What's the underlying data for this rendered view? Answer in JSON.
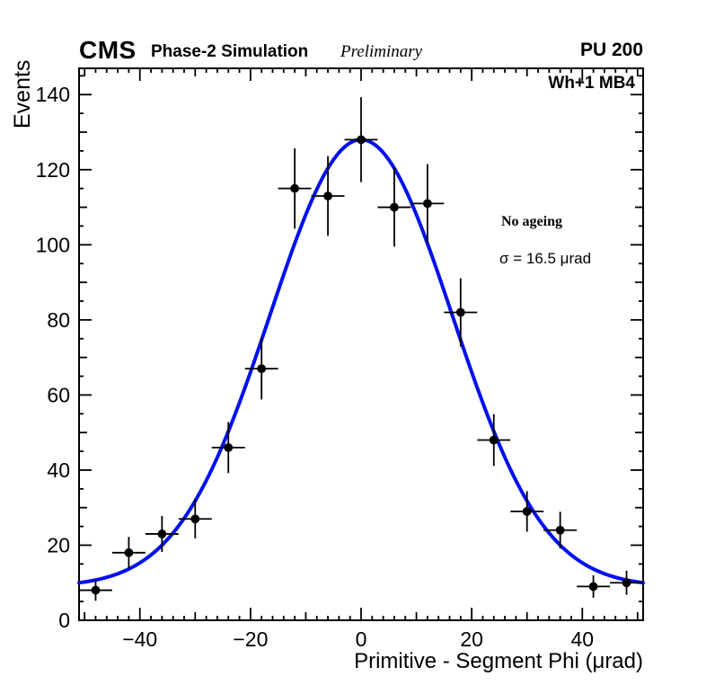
{
  "header": {
    "experiment": "CMS",
    "subtitle": "Phase-2 Simulation",
    "preliminary": "Preliminary",
    "pu": "PU 200"
  },
  "plot_labels": {
    "region": "Wh+1 MB4",
    "ageing": "No ageing",
    "sigma": "σ = 16.5 μrad"
  },
  "chart_data": {
    "type": "scatter",
    "title": "",
    "xlabel": "Primitive - Segment Phi (μrad)",
    "ylabel": "Events",
    "xlim": [
      -51,
      51
    ],
    "ylim": [
      0,
      147
    ],
    "x_ticks": [
      -40,
      -20,
      0,
      20,
      40
    ],
    "y_ticks": [
      0,
      20,
      40,
      60,
      80,
      100,
      120,
      140
    ],
    "grid": false,
    "legend_position": "none",
    "x": [
      -48,
      -42,
      -36,
      -30,
      -24,
      -18,
      -12,
      -6,
      0,
      6,
      12,
      18,
      24,
      30,
      36,
      42,
      48
    ],
    "y": [
      8,
      18,
      23,
      27,
      46,
      67,
      115,
      113,
      128,
      110,
      111,
      82,
      48,
      29,
      24,
      9,
      10
    ],
    "x_err": 3,
    "y_err": [
      2.8,
      4.2,
      4.8,
      5.2,
      6.8,
      8.2,
      10.7,
      10.6,
      11.3,
      10.5,
      10.5,
      9.1,
      6.9,
      5.4,
      4.9,
      3.0,
      3.2
    ],
    "fit": {
      "type": "gaussian_plus_constant",
      "constant": 9,
      "amplitude": 119,
      "mean": 0,
      "sigma": 16.5,
      "color": "#0010ee"
    },
    "marker_color": "#000000",
    "frame_color": "#000000"
  }
}
